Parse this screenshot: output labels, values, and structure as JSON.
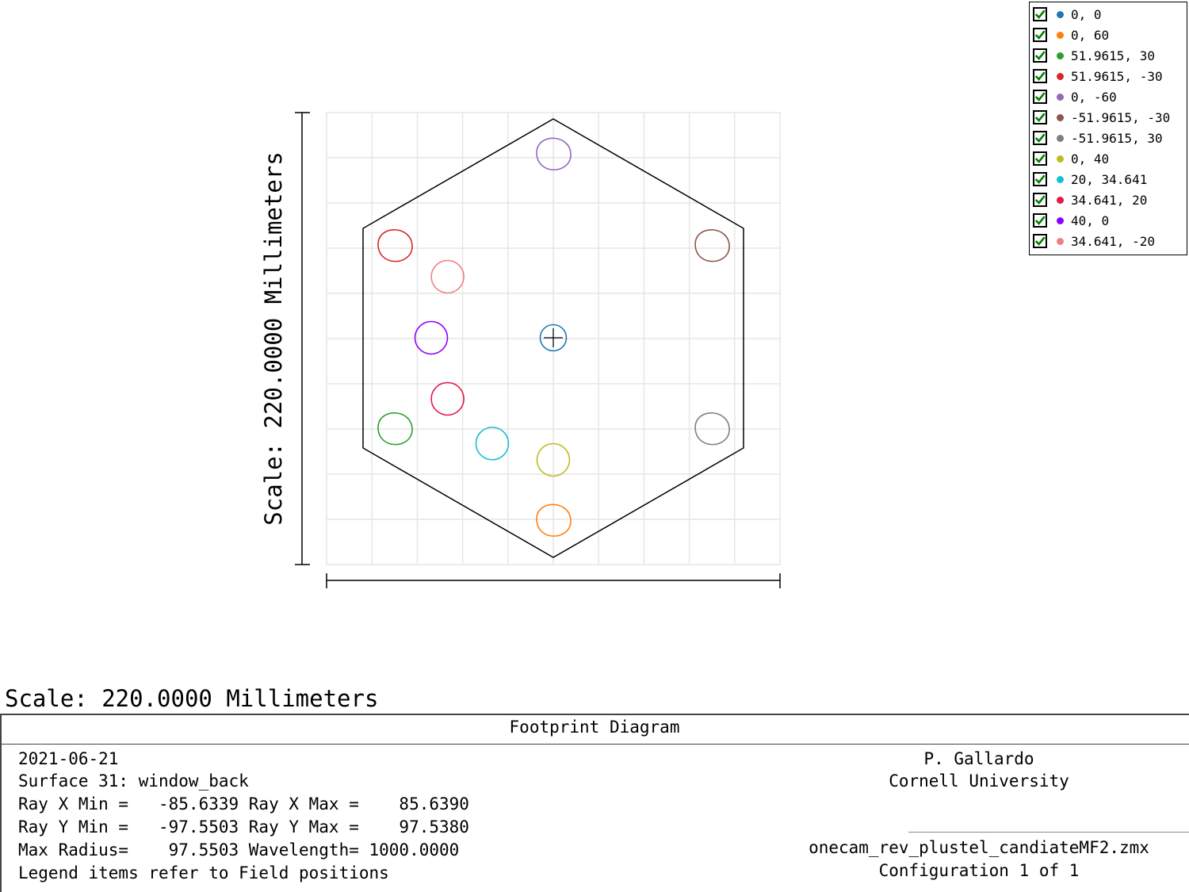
{
  "plot": {
    "vertical_scale_label": "Scale: 220.0000 Millimeters",
    "grid": true
  },
  "chart_data": {
    "type": "scatter",
    "axis_range_mm": [
      -110,
      110
    ],
    "fields": [
      {
        "label": "0, 0",
        "color": "#1f77b4"
      },
      {
        "label": "0, 60",
        "color": "#ff7f0e"
      },
      {
        "label": "51.9615, 30",
        "color": "#2ca02c"
      },
      {
        "label": "51.9615, -30",
        "color": "#d62728"
      },
      {
        "label": "0, -60",
        "color": "#9467bd"
      },
      {
        "label": "-51.9615, -30",
        "color": "#8c564b"
      },
      {
        "label": "-51.9615, 30",
        "color": "#7f7f7f"
      },
      {
        "label": "0, 40",
        "color": "#bcbd22"
      },
      {
        "label": "20, 34.641",
        "color": "#17becf"
      },
      {
        "label": "34.641, 20",
        "color": "#e6194b"
      },
      {
        "label": "40, 0",
        "color": "#8f00ff"
      },
      {
        "label": "34.641, -20",
        "color": "#f08080"
      }
    ]
  },
  "caption": {
    "scale": "Scale: 220.0000 Millimeters"
  },
  "info": {
    "title": "Footprint Diagram",
    "date": "2021-06-21",
    "surface": "Surface 31: window_back",
    "ray_x": "Ray X Min =   -85.6339 Ray X Max =    85.6390",
    "ray_y": "Ray Y Min =   -97.5503 Ray Y Max =    97.5380",
    "radius": "Max Radius=    97.5503 Wavelength= 1000.0000",
    "legend_note": "Legend items refer to Field positions",
    "author": "P. Gallardo",
    "org": "Cornell University",
    "file": "onecam_rev_plustel_candiateMF2.zmx",
    "config": "Configuration 1 of 1"
  }
}
